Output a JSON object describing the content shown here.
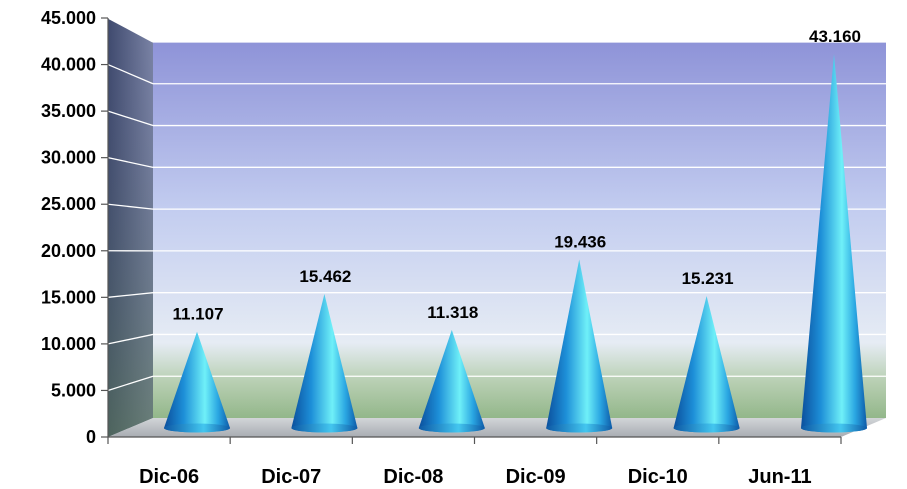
{
  "chart_data": {
    "type": "bar",
    "shape": "cone",
    "categories": [
      "Dic-06",
      "Dic-07",
      "Dic-08",
      "Dic-09",
      "Dic-10",
      "Jun-11"
    ],
    "values": [
      11107,
      15462,
      11318,
      19436,
      15231,
      43160
    ],
    "data_labels": [
      "11.107",
      "15.462",
      "11.318",
      "19.436",
      "15.231",
      "43.160"
    ],
    "y_ticks": [
      0,
      5000,
      10000,
      15000,
      20000,
      25000,
      30000,
      35000,
      40000,
      45000
    ],
    "y_tick_labels": [
      "0",
      "5.000",
      "10.000",
      "15.000",
      "20.000",
      "25.000",
      "30.000",
      "35.000",
      "40.000",
      "45.000"
    ],
    "ylim": [
      0,
      45000
    ],
    "grid": true,
    "legend": "none",
    "colors": {
      "cone": "#1a8ad6",
      "cone_highlight": "#6ee8f5",
      "back_wall_top": "#8f93d6",
      "back_wall_bottom": "#dfe5ef",
      "floor_band": "#a8c8a0",
      "floor": "#c0c4c8"
    }
  }
}
